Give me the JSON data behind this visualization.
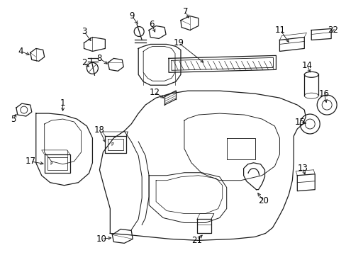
{
  "bg_color": "#ffffff",
  "line_color": "#1a1a1a",
  "fig_width": 4.89,
  "fig_height": 3.6,
  "dpi": 100,
  "label_fontsize": 8.5,
  "arrow_color": "#1a1a1a"
}
